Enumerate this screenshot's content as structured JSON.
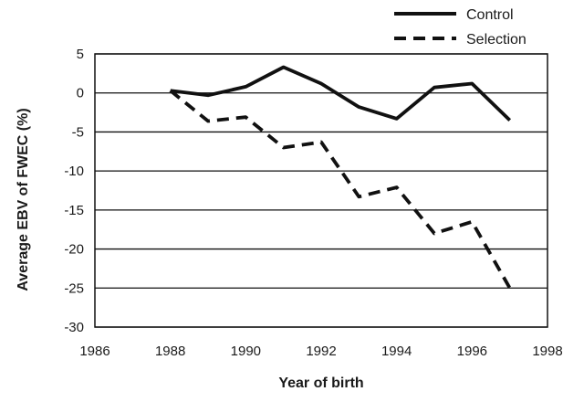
{
  "chart_data": {
    "type": "line",
    "title": "",
    "xlabel": "Year of birth",
    "ylabel": "Average EBV of FWEC (%)",
    "xlim": [
      1986,
      1998
    ],
    "ylim": [
      -30,
      5
    ],
    "xticks": [
      1986,
      1988,
      1990,
      1992,
      1994,
      1996,
      1998
    ],
    "yticks": [
      5,
      0,
      -5,
      -10,
      -15,
      -20,
      -25,
      -30
    ],
    "grid": "horizontal",
    "legend_position": "top-right",
    "series": [
      {
        "name": "Control",
        "style": "solid",
        "color": "#111111",
        "x": [
          1988,
          1989,
          1990,
          1991,
          1992,
          1993,
          1994,
          1995,
          1996,
          1997
        ],
        "y": [
          0.3,
          -0.3,
          0.8,
          3.3,
          1.2,
          -1.8,
          -3.3,
          0.7,
          1.2,
          -3.5
        ]
      },
      {
        "name": "Selection",
        "style": "dashed",
        "color": "#111111",
        "x": [
          1988,
          1989,
          1990,
          1991,
          1992,
          1993,
          1994,
          1995,
          1996,
          1997
        ],
        "y": [
          0.3,
          -3.6,
          -3.1,
          -7.0,
          -6.3,
          -13.3,
          -12.1,
          -18.0,
          -16.5,
          -25.0
        ]
      }
    ]
  }
}
